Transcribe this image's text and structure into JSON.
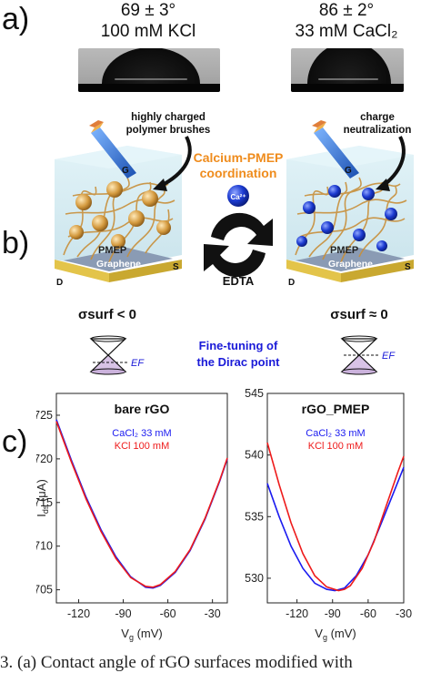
{
  "panel_labels": {
    "a": "a)",
    "b": "b)",
    "c": "c)"
  },
  "panel_a": {
    "left": {
      "angle": "69 ± 3°",
      "condition": "100 mM KCl"
    },
    "right": {
      "angle": "86 ± 2°",
      "condition": "33 mM CaCl₂"
    }
  },
  "panel_b": {
    "left_callout": [
      "highly charged",
      "polymer brushes"
    ],
    "right_callout": [
      "charge",
      "neutralization"
    ],
    "center_top": [
      "Calcium-PMEP",
      "coordination"
    ],
    "ion_label": "Ca²⁺",
    "edta_label": "EDTA",
    "gate_label": "G",
    "drain_label": "D",
    "source_label": "S",
    "pmep_label": "PMEP",
    "graphene_label": "Graphene",
    "sigma_left": "σsurf < 0",
    "sigma_right": "σsurf ≈ 0",
    "dirac_text": [
      "Fine-tuning of",
      "the Dirac point"
    ],
    "ef_label": "EF",
    "colors": {
      "brush": "#d9a85b",
      "box": "#c9e7ef",
      "ion": "#1838c8",
      "arrow": "#111111",
      "gold": "#e0c048",
      "graphene": "#7a8ea8"
    }
  },
  "chart_data": [
    {
      "type": "line",
      "title": "bare rGO",
      "xlabel": "Vg (mV)",
      "ylabel": "Ids (μA)",
      "xlim": [
        -135,
        -20
      ],
      "ylim": [
        703.5,
        727.5
      ],
      "xticks": [
        -120,
        -90,
        -60,
        -30
      ],
      "yticks": [
        705,
        710,
        715,
        720,
        725
      ],
      "series": [
        {
          "name": "CaCl2 33 mM",
          "color": "#1b1bf0",
          "x": [
            -135,
            -125,
            -115,
            -105,
            -95,
            -85,
            -75,
            -70,
            -65,
            -55,
            -45,
            -35,
            -25,
            -20
          ],
          "y": [
            724.5,
            719.9,
            715.6,
            711.9,
            708.8,
            706.5,
            705.3,
            705.2,
            705.5,
            707.0,
            709.5,
            713.1,
            717.5,
            720.0
          ]
        },
        {
          "name": "KCl 100 mM",
          "color": "#ee1b1b",
          "x": [
            -135,
            -125,
            -115,
            -105,
            -95,
            -85,
            -75,
            -70,
            -65,
            -55,
            -45,
            -35,
            -25,
            -20
          ],
          "y": [
            724.3,
            719.7,
            715.4,
            711.7,
            708.6,
            706.4,
            705.4,
            705.3,
            705.6,
            707.1,
            709.6,
            713.2,
            717.6,
            720.1
          ]
        }
      ]
    },
    {
      "type": "line",
      "title": "rGO_PMEP",
      "xlabel": "Vg (mV)",
      "ylabel": "",
      "xlim": [
        -145,
        -30
      ],
      "ylim": [
        528,
        545
      ],
      "xticks": [
        -120,
        -90,
        -60,
        -30
      ],
      "yticks": [
        530,
        535,
        540,
        545
      ],
      "series": [
        {
          "name": "CaCl2 33 mM",
          "color": "#1b1bf0",
          "x": [
            -145,
            -135,
            -125,
            -115,
            -105,
            -95,
            -88,
            -80,
            -70,
            -60,
            -50,
            -40,
            -30
          ],
          "y": [
            537.7,
            535.0,
            532.6,
            530.8,
            529.6,
            529.1,
            529.0,
            529.2,
            530.2,
            531.9,
            534.2,
            536.6,
            539.0
          ]
        },
        {
          "name": "KCl 100 mM",
          "color": "#ee1b1b",
          "x": [
            -145,
            -135,
            -125,
            -115,
            -105,
            -95,
            -85,
            -80,
            -75,
            -65,
            -55,
            -45,
            -35,
            -30
          ],
          "y": [
            541.0,
            537.6,
            534.5,
            532.0,
            530.2,
            529.3,
            529.0,
            529.1,
            529.4,
            530.8,
            533.0,
            535.8,
            538.6,
            539.9
          ]
        }
      ]
    }
  ],
  "caption": "3. (a) Contact angle of rGO surfaces modified with"
}
